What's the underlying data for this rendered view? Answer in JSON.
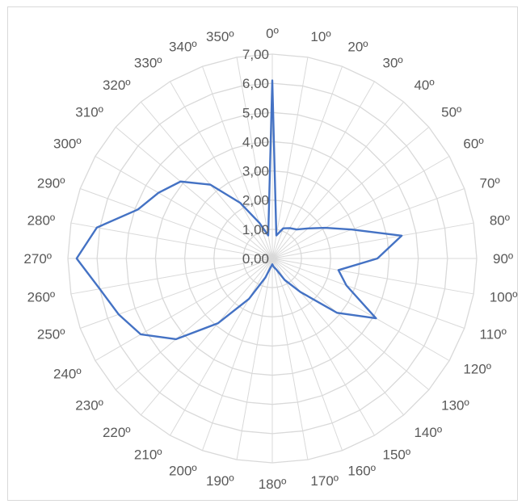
{
  "chart_data": {
    "type": "radar",
    "title": "",
    "grid": true,
    "legend": "none",
    "radial_range": [
      0,
      7
    ],
    "radial_ticks": [
      "0,00",
      "1,00",
      "2,00",
      "3,00",
      "4,00",
      "5,00",
      "6,00",
      "7,00"
    ],
    "angles": [
      0,
      10,
      20,
      30,
      40,
      50,
      60,
      70,
      80,
      90,
      100,
      110,
      120,
      130,
      140,
      150,
      160,
      170,
      180,
      190,
      200,
      210,
      220,
      230,
      240,
      250,
      260,
      270,
      280,
      290,
      300,
      310,
      320,
      330,
      340,
      350
    ],
    "category_labels": [
      "0º",
      "10º",
      "20º",
      "30º",
      "40º",
      "50º",
      "60º",
      "70º",
      "80º",
      "90º",
      "100º",
      "110º",
      "120º",
      "130º",
      "140º",
      "150º",
      "160º",
      "170º",
      "180º",
      "190º",
      "200º",
      "210º",
      "220º",
      "230º",
      "240º",
      "250º",
      "260º",
      "270º",
      "280º",
      "290º",
      "300º",
      "310º",
      "320º",
      "330º",
      "340º",
      "350º"
    ],
    "series": [
      {
        "name": "",
        "color": "#4472c4",
        "values": [
          6.1,
          0.8,
          1.1,
          1.2,
          1.3,
          1.6,
          2.1,
          2.9,
          4.5,
          3.6,
          2.3,
          2.7,
          4.1,
          2.9,
          1.5,
          0.85,
          0.4,
          0.3,
          0.2,
          0.3,
          0.7,
          1.6,
          2.9,
          4.3,
          5.2,
          5.6,
          6.0,
          6.7,
          6.1,
          4.9,
          4.5,
          4.1,
          3.3,
          2.2,
          1.3,
          0.8
        ]
      }
    ]
  }
}
